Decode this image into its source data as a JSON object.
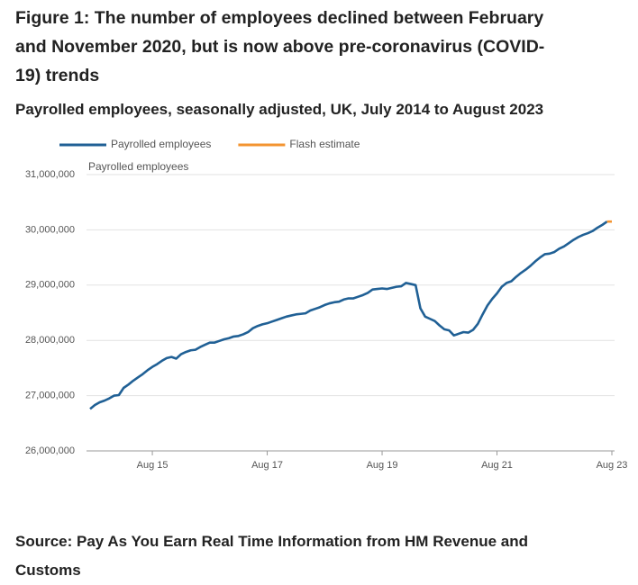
{
  "chart_data": {
    "type": "line",
    "title": "Figure 1: The number of employees declined between February and November 2020, but is now above pre-coronavirus (COVID-19) trends",
    "subtitle": "Payrolled employees, seasonally adjusted, UK, July 2014 to August 2023",
    "y_label": "Payrolled employees",
    "source": "Source: Pay As You Earn Real Time Information from HM Revenue and Customs",
    "categories": [
      null,
      null,
      null,
      null,
      null,
      null,
      null,
      null,
      null,
      null,
      null,
      null,
      null,
      "Aug 15",
      null,
      null,
      null,
      null,
      null,
      null,
      null,
      null,
      null,
      null,
      null,
      null,
      null,
      null,
      null,
      null,
      null,
      null,
      null,
      null,
      null,
      null,
      null,
      "Aug 17",
      null,
      null,
      null,
      null,
      null,
      null,
      null,
      null,
      null,
      null,
      null,
      null,
      null,
      null,
      null,
      null,
      null,
      null,
      null,
      null,
      null,
      null,
      null,
      "Aug 19",
      null,
      null,
      null,
      null,
      null,
      null,
      null,
      null,
      null,
      null,
      null,
      null,
      null,
      null,
      null,
      null,
      null,
      null,
      null,
      null,
      null,
      null,
      null,
      "Aug 21",
      null,
      null,
      null,
      null,
      null,
      null,
      null,
      null,
      null,
      null,
      null,
      null,
      null,
      null,
      null,
      null,
      null,
      null,
      null,
      null,
      null,
      null,
      null,
      "Aug 23"
    ],
    "series": [
      {
        "name": "Payrolled employees",
        "color": "#206095",
        "values": [
          26760000,
          26830000,
          26880000,
          26910000,
          26950000,
          27000000,
          27010000,
          27140000,
          27200000,
          27270000,
          27330000,
          27390000,
          27460000,
          27520000,
          27570000,
          27630000,
          27680000,
          27700000,
          27670000,
          27750000,
          27790000,
          27820000,
          27830000,
          27880000,
          27920000,
          27960000,
          27960000,
          27990000,
          28020000,
          28040000,
          28070000,
          28080000,
          28110000,
          28150000,
          28220000,
          28260000,
          28290000,
          28310000,
          28340000,
          28370000,
          28400000,
          28430000,
          28450000,
          28470000,
          28480000,
          28490000,
          28540000,
          28570000,
          28600000,
          28640000,
          28670000,
          28690000,
          28700000,
          28740000,
          28760000,
          28760000,
          28790000,
          28820000,
          28860000,
          28920000,
          28930000,
          28940000,
          28930000,
          28950000,
          28970000,
          28980000,
          29040000,
          29020000,
          29000000,
          28580000,
          28430000,
          28390000,
          28350000,
          28270000,
          28200000,
          28180000,
          28090000,
          28120000,
          28150000,
          28140000,
          28190000,
          28300000,
          28470000,
          28630000,
          28750000,
          28850000,
          28970000,
          29040000,
          29070000,
          29150000,
          29220000,
          29280000,
          29350000,
          29430000,
          29500000,
          29560000,
          29570000,
          29600000,
          29660000,
          29700000,
          29760000,
          29820000,
          29870000,
          29910000,
          29940000,
          29980000,
          30040000,
          30090000,
          30150000,
          null
        ]
      },
      {
        "name": "Flash estimate",
        "color": "#f39431",
        "values": [
          null,
          null,
          null,
          null,
          null,
          null,
          null,
          null,
          null,
          null,
          null,
          null,
          null,
          null,
          null,
          null,
          null,
          null,
          null,
          null,
          null,
          null,
          null,
          null,
          null,
          null,
          null,
          null,
          null,
          null,
          null,
          null,
          null,
          null,
          null,
          null,
          null,
          null,
          null,
          null,
          null,
          null,
          null,
          null,
          null,
          null,
          null,
          null,
          null,
          null,
          null,
          null,
          null,
          null,
          null,
          null,
          null,
          null,
          null,
          null,
          null,
          null,
          null,
          null,
          null,
          null,
          null,
          null,
          null,
          null,
          null,
          null,
          null,
          null,
          null,
          null,
          null,
          null,
          null,
          null,
          null,
          null,
          null,
          null,
          null,
          null,
          null,
          null,
          null,
          null,
          null,
          null,
          null,
          null,
          null,
          null,
          null,
          null,
          null,
          null,
          null,
          null,
          null,
          null,
          null,
          null,
          null,
          null,
          30150000,
          30150000
        ]
      }
    ],
    "ylim": [
      26000000,
      31000000
    ],
    "yticks": [
      {
        "value": 26000000,
        "label": "26,000,000"
      },
      {
        "value": 27000000,
        "label": "27,000,000"
      },
      {
        "value": 28000000,
        "label": "28,000,000"
      },
      {
        "value": 29000000,
        "label": "29,000,000"
      },
      {
        "value": 30000000,
        "label": "30,000,000"
      },
      {
        "value": 31000000,
        "label": "31,000,000"
      }
    ],
    "grid": true
  }
}
